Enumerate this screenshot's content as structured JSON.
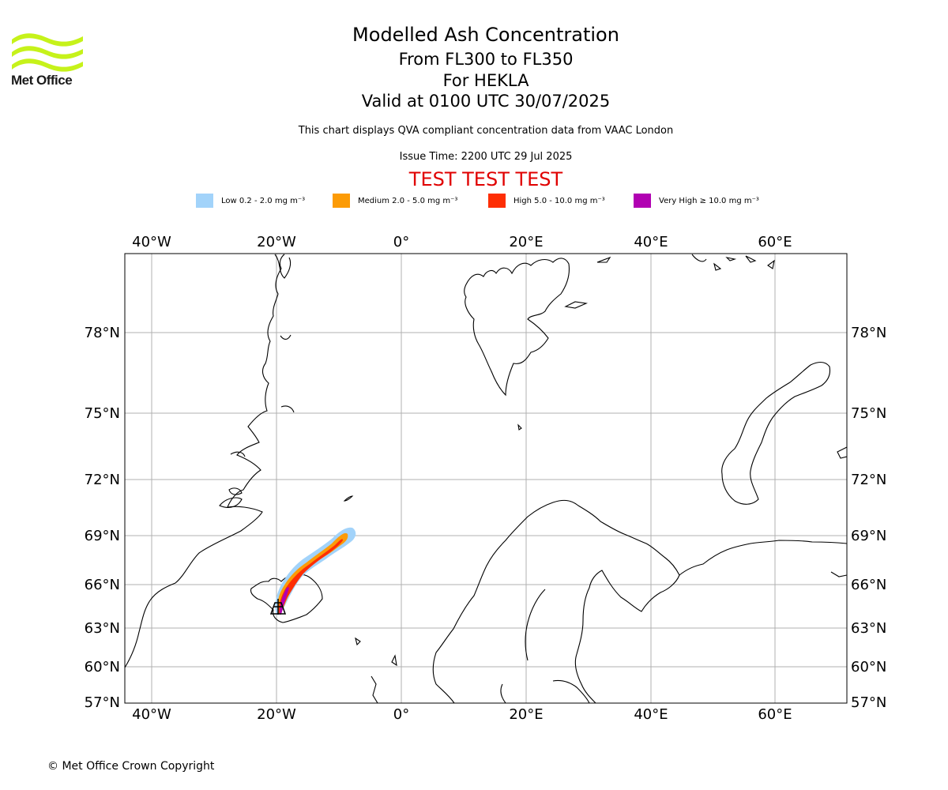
{
  "titles": {
    "main": "Modelled Ash Concentration",
    "levels": "From FL300 to FL350",
    "volcano": "For HEKLA",
    "valid": "Valid at 0100 UTC 30/07/2025",
    "note": "This chart displays QVA compliant concentration data from VAAC London",
    "issue": "Issue Time: 2200 UTC 29 Jul 2025",
    "test": "TEST TEST TEST"
  },
  "logo": {
    "text": "Met Office",
    "color": "#c6f21a"
  },
  "legend": [
    {
      "label": "Low 0.2 - 2.0 mg m⁻³",
      "color": "#a2d3fa"
    },
    {
      "label": "Medium 2.0 - 5.0 mg m⁻³",
      "color": "#fc9b06"
    },
    {
      "label": "High 5.0 - 10.0 mg m⁻³",
      "color": "#fe2e04"
    },
    {
      "label": "Very High ≥ 10.0 mg m⁻³",
      "color": "#b101b2"
    }
  ],
  "axes": {
    "lon_ticks": [
      "40°W",
      "20°W",
      "0°",
      "20°E",
      "40°E",
      "60°E"
    ],
    "lat_ticks": [
      "78°N",
      "75°N",
      "72°N",
      "69°N",
      "66°N",
      "63°N",
      "60°N",
      "57°N"
    ]
  },
  "copyright": "© Met Office Crown Copyright"
}
